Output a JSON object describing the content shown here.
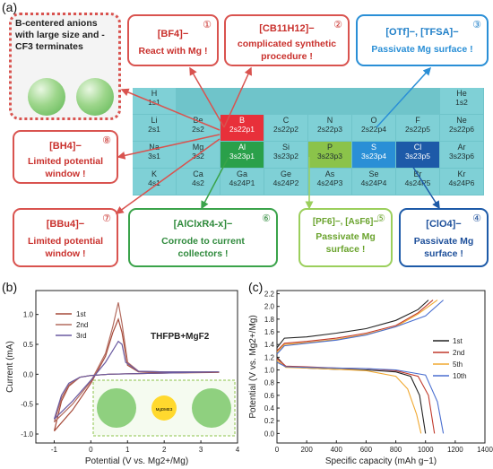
{
  "panel_labels": {
    "a": "(a)",
    "b": "(b)",
    "c": "(c)"
  },
  "boron_box": {
    "text": "B-centered anions with large size and -CF3 terminates"
  },
  "callouts": [
    {
      "id": "c1",
      "num": "①",
      "title": "[BF4]−",
      "desc": "React with Mg !"
    },
    {
      "id": "c2",
      "num": "②",
      "title": "[CB11H12]−",
      "desc": "complicated synthetic procedure !"
    },
    {
      "id": "c3",
      "num": "③",
      "title": "[OTf]−, [TFSA]−",
      "desc": "Passivate Mg surface !"
    },
    {
      "id": "c4",
      "num": "④",
      "title": "[ClO4]−",
      "desc": "Passivate Mg surface !"
    },
    {
      "id": "c5",
      "num": "⑤",
      "title": "[PF6]−, [AsF6]−",
      "desc": "Passivate Mg surface !"
    },
    {
      "id": "c6",
      "num": "⑥",
      "title": "[AlClxR4-x]−",
      "desc": "Corrode to current collectors !"
    },
    {
      "id": "c7",
      "num": "⑦",
      "title": "[BBu4]−",
      "desc": "Limited potential window !"
    },
    {
      "id": "c8",
      "num": "⑧",
      "title": "[BH4]−",
      "desc": "Limited potential window !"
    }
  ],
  "periodic": {
    "cells": [
      {
        "sym": "H",
        "cfg": "1s1"
      },
      {
        "sym": "He",
        "cfg": "1s2"
      },
      {
        "sym": "Li",
        "cfg": "2s1"
      },
      {
        "sym": "Be",
        "cfg": "2s2"
      },
      {
        "sym": "B",
        "cfg": "2s22p1"
      },
      {
        "sym": "C",
        "cfg": "2s22p2"
      },
      {
        "sym": "N",
        "cfg": "2s22p3"
      },
      {
        "sym": "O",
        "cfg": "2s22p4"
      },
      {
        "sym": "F",
        "cfg": "2s22p5"
      },
      {
        "sym": "Ne",
        "cfg": "2s22p6"
      },
      {
        "sym": "Na",
        "cfg": "3s1"
      },
      {
        "sym": "Mg",
        "cfg": "3s2"
      },
      {
        "sym": "Al",
        "cfg": "3s23p1"
      },
      {
        "sym": "Si",
        "cfg": "3s23p2"
      },
      {
        "sym": "P",
        "cfg": "3s23p3"
      },
      {
        "sym": "S",
        "cfg": "3s23p4"
      },
      {
        "sym": "Cl",
        "cfg": "3s23p5"
      },
      {
        "sym": "Ar",
        "cfg": "3s23p6"
      },
      {
        "sym": "K",
        "cfg": "4s1"
      },
      {
        "sym": "Ca",
        "cfg": "4s2"
      },
      {
        "sym": "Ga",
        "cfg": "4s24P1"
      },
      {
        "sym": "Ge",
        "cfg": "4s24P2"
      },
      {
        "sym": "As",
        "cfg": "4s24P3"
      },
      {
        "sym": "Se",
        "cfg": "4s24P4"
      },
      {
        "sym": "Br",
        "cfg": "4s24P5"
      },
      {
        "sym": "Kr",
        "cfg": "4s24P6"
      }
    ]
  },
  "colors": {
    "accent_red": "#d9534f",
    "table_cyan": "#7fd0d6",
    "boron_red": "#e8303a",
    "aluminum_green": "#2aa04a",
    "phosphorus_green": "#8bc34a",
    "sulfur_blue": "#2a8fd6",
    "chlorine_navy": "#1d5aa8"
  },
  "chart_data": [
    {
      "type": "line",
      "panel": "(b)",
      "title": "",
      "annotation": "THFPB+MgF2",
      "inset_label": "MgDME3",
      "xlabel": "Potential (V vs. Mg2+/Mg)",
      "ylabel": "Current (mA)",
      "xlim": [
        -1.5,
        4.0
      ],
      "ylim": [
        -1.15,
        1.4
      ],
      "xticks": [
        -1,
        0,
        1,
        2,
        3,
        4
      ],
      "yticks": [
        -1.0,
        -0.5,
        0.0,
        0.5,
        1.0
      ],
      "series": [
        {
          "name": "1st",
          "color": "#a64a3a",
          "x": [
            -1.0,
            -0.5,
            0.0,
            0.4,
            0.6,
            0.75,
            0.85,
            1.0,
            1.3,
            2.0,
            3.5,
            2.0,
            0.5,
            0.0,
            -0.3,
            -0.6,
            -0.8,
            -1.0
          ],
          "y": [
            -0.95,
            -0.6,
            -0.15,
            0.3,
            0.7,
            0.92,
            0.7,
            0.15,
            0.04,
            0.03,
            0.03,
            0.02,
            0.0,
            -0.02,
            -0.05,
            -0.2,
            -0.45,
            -0.95
          ]
        },
        {
          "name": "2nd",
          "color": "#b36b5e",
          "x": [
            -1.0,
            -0.5,
            0.0,
            0.4,
            0.6,
            0.75,
            0.85,
            1.0,
            1.3,
            2.0,
            3.5,
            2.0,
            0.5,
            0.0,
            -0.3,
            -0.6,
            -0.8,
            -1.0
          ],
          "y": [
            -0.8,
            -0.5,
            -0.12,
            0.35,
            0.8,
            1.2,
            0.85,
            0.2,
            0.05,
            0.04,
            0.04,
            0.02,
            0.0,
            -0.02,
            -0.05,
            -0.18,
            -0.4,
            -0.8
          ]
        },
        {
          "name": "3rd",
          "color": "#6a5aa0",
          "x": [
            -1.0,
            -0.5,
            0.0,
            0.4,
            0.6,
            0.75,
            0.85,
            0.95,
            1.3,
            2.0,
            3.5,
            2.0,
            0.5,
            0.0,
            -0.3,
            -0.6,
            -0.8,
            -1.0
          ],
          "y": [
            -0.75,
            -0.45,
            -0.1,
            0.2,
            0.4,
            0.55,
            0.5,
            0.2,
            0.05,
            0.04,
            0.04,
            0.02,
            0.0,
            -0.02,
            -0.05,
            -0.15,
            -0.35,
            -0.75
          ]
        }
      ]
    },
    {
      "type": "line",
      "panel": "(c)",
      "title": "",
      "xlabel": "Specific capacity (mAh g−1)",
      "ylabel": "Potential (V vs. Mg2+/Mg)",
      "xlim": [
        0,
        1400
      ],
      "ylim": [
        -0.15,
        2.25
      ],
      "xticks": [
        0,
        200,
        400,
        600,
        800,
        1000,
        1200,
        1400
      ],
      "yticks": [
        0.0,
        0.2,
        0.4,
        0.6,
        0.8,
        1.0,
        1.2,
        1.4,
        1.6,
        1.8,
        2.0,
        2.2
      ],
      "series": [
        {
          "name": "1st",
          "color": "#222222",
          "charge_x": [
            0,
            50,
            200,
            400,
            600,
            800,
            950,
            1020
          ],
          "charge_y": [
            1.35,
            1.5,
            1.52,
            1.58,
            1.65,
            1.78,
            1.95,
            2.1
          ],
          "discharge_x": [
            0,
            60,
            200,
            400,
            600,
            800,
            900,
            960,
            1000
          ],
          "discharge_y": [
            1.2,
            1.05,
            1.03,
            1.01,
            1.0,
            0.97,
            0.9,
            0.6,
            0.0
          ]
        },
        {
          "name": "2nd",
          "color": "#c0392b",
          "charge_x": [
            0,
            50,
            200,
            400,
            600,
            800,
            950,
            1050
          ],
          "charge_y": [
            1.3,
            1.42,
            1.45,
            1.5,
            1.58,
            1.7,
            1.9,
            2.1
          ],
          "discharge_x": [
            0,
            60,
            200,
            400,
            600,
            800,
            950,
            1020,
            1060
          ],
          "discharge_y": [
            1.18,
            1.06,
            1.05,
            1.03,
            1.02,
            0.99,
            0.9,
            0.6,
            0.0
          ]
        },
        {
          "name": "5th",
          "color": "#f0a830",
          "charge_x": [
            0,
            50,
            200,
            400,
            600,
            800,
            950,
            1080
          ],
          "charge_y": [
            1.28,
            1.4,
            1.43,
            1.48,
            1.56,
            1.68,
            1.88,
            2.1
          ],
          "discharge_x": [
            0,
            60,
            200,
            400,
            600,
            800,
            880,
            940,
            970
          ],
          "discharge_y": [
            1.15,
            1.04,
            1.03,
            1.01,
            0.99,
            0.9,
            0.7,
            0.3,
            0.0
          ]
        },
        {
          "name": "10th",
          "color": "#4a6fd0",
          "charge_x": [
            0,
            50,
            200,
            400,
            600,
            800,
            1000,
            1120
          ],
          "charge_y": [
            1.25,
            1.38,
            1.42,
            1.47,
            1.55,
            1.68,
            1.85,
            2.1
          ],
          "discharge_x": [
            0,
            60,
            200,
            400,
            600,
            800,
            1000,
            1080,
            1120
          ],
          "discharge_y": [
            1.12,
            1.05,
            1.04,
            1.03,
            1.02,
            1.0,
            0.92,
            0.5,
            0.0
          ]
        }
      ]
    }
  ]
}
